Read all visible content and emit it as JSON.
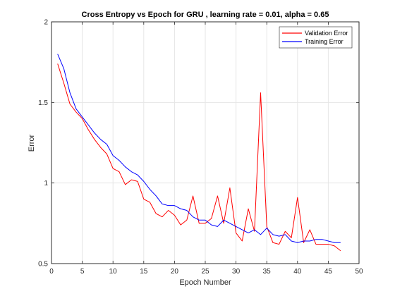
{
  "chart_data": {
    "type": "line",
    "title": "Cross Entropy vs Epoch for GRU , learning rate = 0.01, alpha = 0.65",
    "xlabel": "Epoch Number",
    "ylabel": "Error",
    "xlim": [
      0,
      50
    ],
    "ylim": [
      0.5,
      2
    ],
    "xticks": [
      0,
      5,
      10,
      15,
      20,
      25,
      30,
      35,
      40,
      45,
      50
    ],
    "yticks": [
      0.5,
      1,
      1.5,
      2
    ],
    "ytick_labels": [
      "0.5",
      "1",
      "1.5",
      "2"
    ],
    "grid": true,
    "legend_position": "top-right",
    "x": [
      1,
      2,
      3,
      4,
      5,
      6,
      7,
      8,
      9,
      10,
      11,
      12,
      13,
      14,
      15,
      16,
      17,
      18,
      19,
      20,
      21,
      22,
      23,
      24,
      25,
      26,
      27,
      28,
      29,
      30,
      31,
      32,
      33,
      34,
      35,
      36,
      37,
      38,
      39,
      40,
      41,
      42,
      43,
      44,
      45,
      46,
      47
    ],
    "series": [
      {
        "name": "Validation Error",
        "color": "#ff0000",
        "values": [
          1.74,
          1.62,
          1.49,
          1.44,
          1.4,
          1.33,
          1.27,
          1.22,
          1.18,
          1.09,
          1.07,
          0.99,
          1.02,
          1.01,
          0.9,
          0.88,
          0.81,
          0.79,
          0.83,
          0.8,
          0.74,
          0.77,
          0.92,
          0.75,
          0.75,
          0.78,
          0.92,
          0.75,
          0.97,
          0.69,
          0.64,
          0.84,
          0.7,
          1.56,
          0.73,
          0.63,
          0.62,
          0.7,
          0.66,
          0.91,
          0.63,
          0.71,
          0.62,
          0.62,
          0.62,
          0.61,
          0.58
        ]
      },
      {
        "name": "Training Error",
        "color": "#0000ff",
        "values": [
          1.8,
          1.71,
          1.56,
          1.46,
          1.41,
          1.36,
          1.31,
          1.27,
          1.24,
          1.17,
          1.14,
          1.1,
          1.07,
          1.05,
          1.01,
          0.96,
          0.92,
          0.87,
          0.86,
          0.86,
          0.84,
          0.83,
          0.79,
          0.77,
          0.77,
          0.74,
          0.73,
          0.77,
          0.75,
          0.73,
          0.71,
          0.69,
          0.71,
          0.68,
          0.72,
          0.68,
          0.67,
          0.68,
          0.64,
          0.63,
          0.64,
          0.64,
          0.65,
          0.65,
          0.64,
          0.63,
          0.63
        ]
      }
    ]
  }
}
